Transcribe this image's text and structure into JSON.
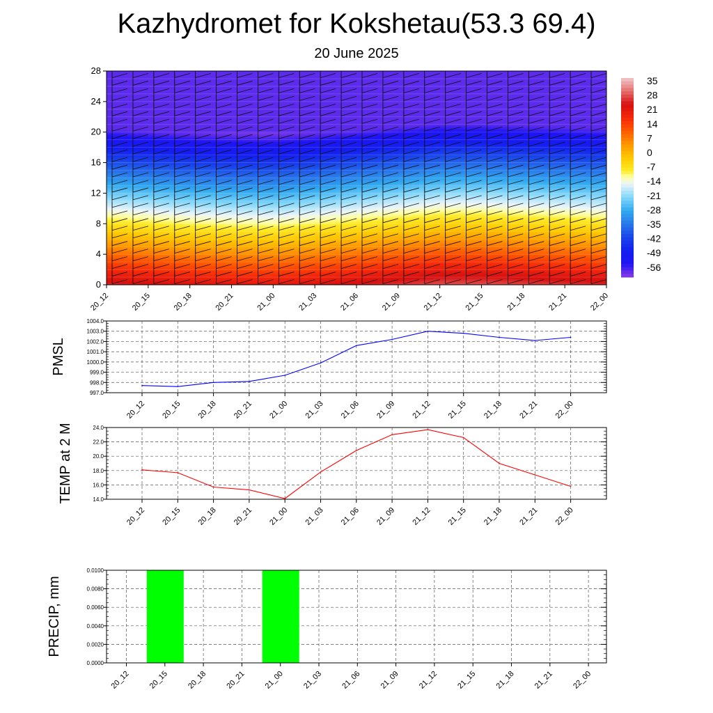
{
  "header": {
    "title": "Kazhydromet for Kokshetau(53.3 69.4)",
    "subtitle": "20 June 2025"
  },
  "chart_data": [
    {
      "type": "heatmap",
      "name": "vertical-section",
      "x_labels": [
        "20_12",
        "20_15",
        "20_18",
        "20_21",
        "21_00",
        "21_03",
        "21_06",
        "21_09",
        "21_12",
        "21_15",
        "21_18",
        "21_21",
        "22_00"
      ],
      "y_ticks": [
        0,
        4,
        8,
        12,
        16,
        20,
        24,
        28
      ],
      "ylim": [
        0,
        28
      ],
      "colorbar_labels": [
        "35",
        "28",
        "21",
        "14",
        "7",
        "0",
        "-7",
        "-14",
        "-21",
        "-28",
        "-35",
        "-42",
        "-49",
        "-56"
      ],
      "colorbar_range": [
        -63,
        42
      ],
      "lapse_per_level": -4.4,
      "surface_temps": [
        30,
        28.5,
        27,
        26,
        25.5,
        27,
        29,
        31,
        33,
        33,
        32,
        31,
        30
      ],
      "contour_colors": {
        "high": "#c81010",
        "warm": "#ff5a00",
        "yellow": "#ffe040",
        "cool": "#8ad8f8",
        "cold": "#2a7ce8",
        "cold_top": "#1a1ef0"
      }
    },
    {
      "type": "line",
      "name": "pmsl",
      "ylabel": "PMSL",
      "x_labels": [
        "20_12",
        "20_15",
        "20_18",
        "20_21",
        "21_00",
        "21_03",
        "21_06",
        "21_09",
        "21_12",
        "21_15",
        "21_18",
        "21_21",
        "22_00"
      ],
      "values": [
        997.7,
        997.6,
        998.0,
        998.1,
        998.7,
        999.9,
        1001.6,
        1002.2,
        1003.0,
        1002.8,
        1002.4,
        1002.1,
        1002.4
      ],
      "ylim": [
        997.0,
        1004.0
      ],
      "y_ticks": [
        "997.0",
        "998.0",
        "999.0",
        "1000.0",
        "1001.0",
        "1002.0",
        "1003.0",
        "1004.0"
      ],
      "color": "#0000ff"
    },
    {
      "type": "line",
      "name": "temp2m",
      "ylabel": "TEMP at 2 M",
      "x_labels": [
        "20_12",
        "20_15",
        "20_18",
        "20_21",
        "21_00",
        "21_03",
        "21_06",
        "21_09",
        "21_12",
        "21_15",
        "21_18",
        "21_21",
        "22_00"
      ],
      "values": [
        18.1,
        17.7,
        15.7,
        15.3,
        14.1,
        17.8,
        20.8,
        23.0,
        23.7,
        22.6,
        19.0,
        17.4,
        15.8
      ],
      "ylim": [
        14.0,
        24.0
      ],
      "y_ticks": [
        "14.0",
        "16.0",
        "18.0",
        "20.0",
        "22.0",
        "24.0"
      ],
      "color": "#ff0000"
    },
    {
      "type": "bar",
      "name": "precip",
      "ylabel": "PRECIP, mm",
      "x_labels": [
        "20_12",
        "20_15",
        "20_18",
        "20_21",
        "21_00",
        "21_03",
        "21_06",
        "21_09",
        "21_12",
        "21_15",
        "21_18",
        "21_21",
        "22_00"
      ],
      "values": [
        0,
        0.01,
        0,
        0,
        0.01,
        0,
        0,
        0,
        0,
        0,
        0,
        0,
        0
      ],
      "ylim": [
        0,
        0.01
      ],
      "y_ticks": [
        "0.0000",
        "0.0020",
        "0.0040",
        "0.0060",
        "0.0080",
        "0.0100"
      ],
      "color": "#00ff00"
    }
  ]
}
